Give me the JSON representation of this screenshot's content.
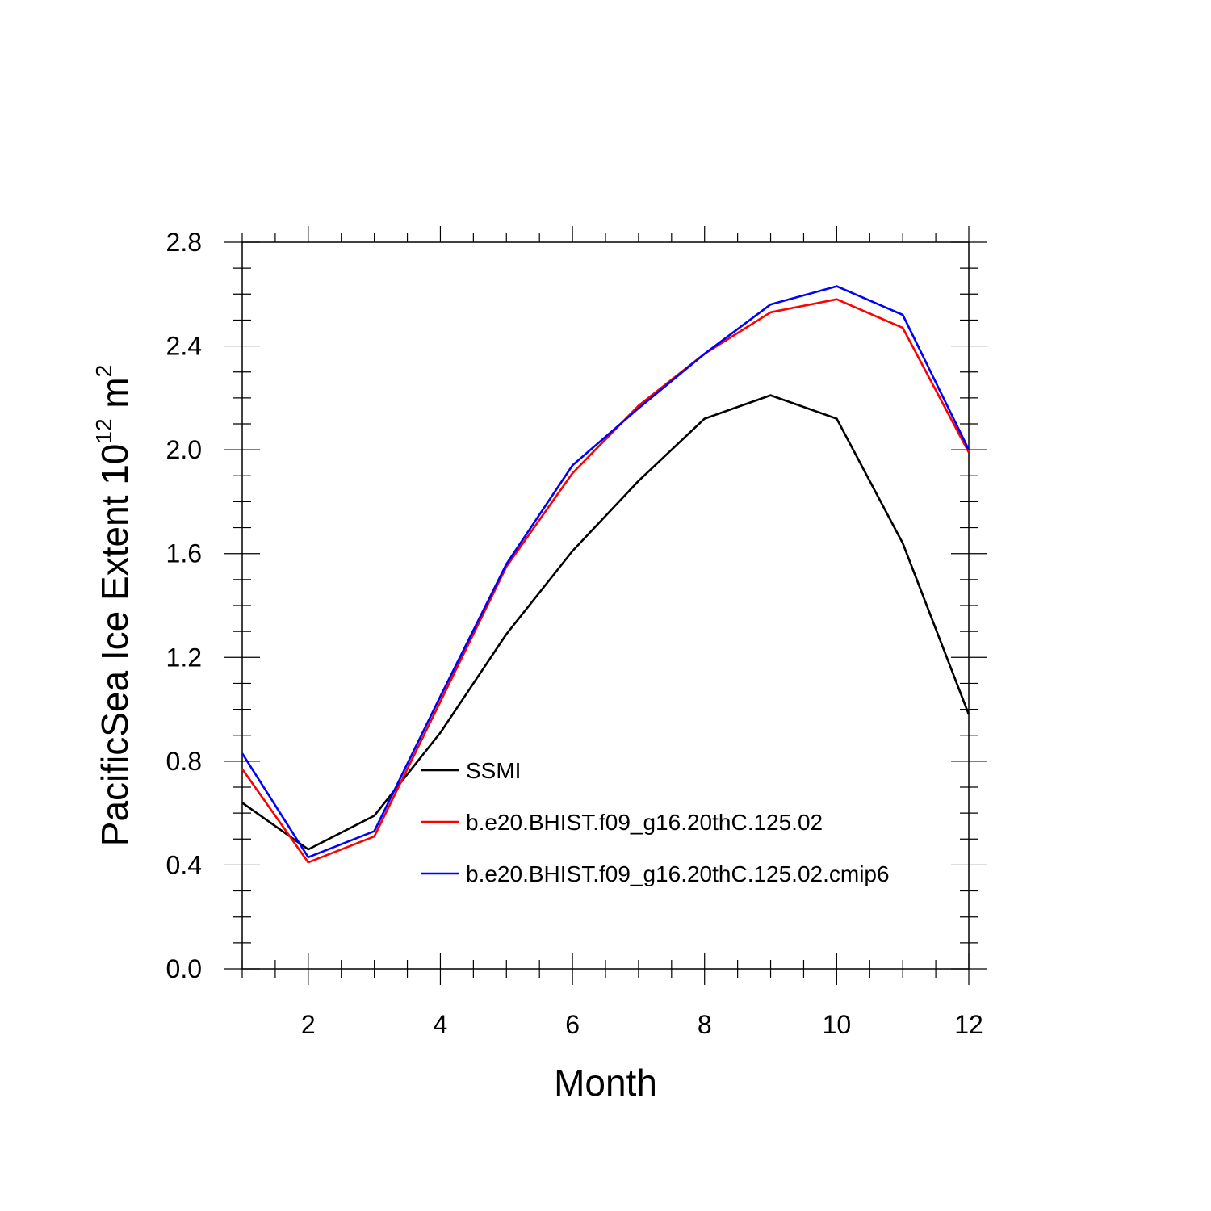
{
  "chart_data": {
    "type": "line",
    "title": "",
    "xlabel": "Month",
    "ylabel": {
      "main": "PacificSea Ice Extent 10",
      "superscript_1": "12",
      "unit": " m",
      "superscript_2": "2"
    },
    "x": [
      1,
      2,
      3,
      4,
      5,
      6,
      7,
      8,
      9,
      10,
      11,
      12
    ],
    "xlim": [
      1,
      12
    ],
    "ylim": [
      0,
      2.8
    ],
    "xticks": [
      2,
      4,
      6,
      8,
      10,
      12
    ],
    "xtick_labels": [
      "2",
      "4",
      "6",
      "8",
      "10",
      "12"
    ],
    "yticks": [
      0.0,
      0.4,
      0.8,
      1.2,
      1.6,
      2.0,
      2.4,
      2.8
    ],
    "ytick_labels": [
      "0.0",
      "0.4",
      "0.8",
      "1.2",
      "1.6",
      "2.0",
      "2.4",
      "2.8"
    ],
    "grid": false,
    "legend_position": "lower-middle",
    "series": [
      {
        "name": "SSMI",
        "color": "#000000",
        "values": [
          0.64,
          0.46,
          0.59,
          0.91,
          1.29,
          1.61,
          1.88,
          2.12,
          2.21,
          2.12,
          1.64,
          0.98
        ]
      },
      {
        "name": "b.e20.BHIST.f09_g16.20thC.125.02",
        "color": "#ff0000",
        "values": [
          0.77,
          0.41,
          0.51,
          1.03,
          1.55,
          1.91,
          2.17,
          2.37,
          2.53,
          2.58,
          2.47,
          1.99
        ]
      },
      {
        "name": "b.e20.BHIST.f09_g16.20thC.125.02.cmip6",
        "color": "#0000ff",
        "values": [
          0.83,
          0.43,
          0.53,
          1.05,
          1.56,
          1.94,
          2.16,
          2.37,
          2.56,
          2.63,
          2.52,
          2.0
        ]
      }
    ]
  }
}
